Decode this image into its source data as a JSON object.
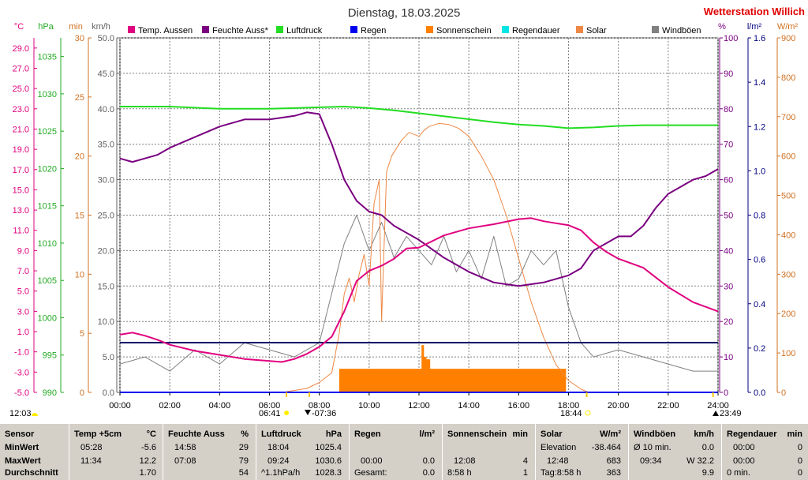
{
  "header": {
    "title": "Dienstag, 18.03.2025",
    "station": "Wetterstation Willich"
  },
  "axes": {
    "left_units": [
      "°C",
      "hPa",
      "min",
      "km/h"
    ],
    "right_units": [
      "%",
      "l/m²",
      "W/m²"
    ],
    "temp_ticks": [
      "29.0",
      "27.0",
      "25.0",
      "23.0",
      "21.0",
      "19.0",
      "17.0",
      "15.0",
      "13.0",
      "11.0",
      "9.0",
      "7.0",
      "5.0",
      "3.0",
      "1.0",
      "-1.0",
      "-3.0",
      "-5.0"
    ],
    "press_ticks": [
      "1035",
      "1030",
      "1025",
      "1020",
      "1015",
      "1010",
      "1005",
      "1000",
      "995",
      "990"
    ],
    "min_ticks": [
      "30",
      "25",
      "20",
      "15",
      "10",
      "5",
      "0"
    ],
    "wind_ticks": [
      "50.0",
      "45.0",
      "40.0",
      "35.0",
      "30.0",
      "25.0",
      "20.0",
      "15.0",
      "10.0",
      "5.0",
      "0.0"
    ],
    "hum_ticks": [
      "100",
      "90",
      "80",
      "70",
      "60",
      "50",
      "40",
      "30",
      "20",
      "10",
      "0"
    ],
    "rain_ticks": [
      "1.6",
      "1.4",
      "1.2",
      "1.0",
      "0.8",
      "0.6",
      "0.4",
      "0.2",
      "0.0"
    ],
    "solar_ticks": [
      "900",
      "800",
      "700",
      "600",
      "500",
      "400",
      "300",
      "200",
      "100",
      "0"
    ],
    "time_ticks": [
      "00:00",
      "02:00",
      "04:00",
      "06:00",
      "08:00",
      "10:00",
      "12:00",
      "14:00",
      "16:00",
      "18:00",
      "20:00",
      "22:00",
      "24:00"
    ],
    "sun_events": {
      "left_time": "12:03",
      "sunrise": "06:41",
      "dawn": "07:36",
      "sunset": "18:44",
      "right_time": "23:49"
    }
  },
  "legend": [
    {
      "label": "Temp. Aussen",
      "color": "#e0007f"
    },
    {
      "label": "Feuchte Auss*",
      "color": "#7a0080"
    },
    {
      "label": "Luftdruck",
      "color": "#22dd22"
    },
    {
      "label": "Regen",
      "color": "#0000ee"
    },
    {
      "label": "Sonnenschein",
      "color": "#ff8000"
    },
    {
      "label": "Regendauer",
      "color": "#00e5e5"
    },
    {
      "label": "Solar",
      "color": "#ee8844"
    },
    {
      "label": "Windböen",
      "color": "#808080"
    }
  ],
  "chart_data": {
    "type": "line",
    "x_range": [
      "00:00",
      "24:00"
    ],
    "grid": true,
    "legend_position": "top",
    "series": [
      {
        "name": "Temp. Aussen",
        "unit": "°C",
        "ylim": [
          -5,
          30
        ],
        "x": [
          0,
          0.5,
          1,
          1.5,
          2,
          3,
          4,
          5,
          6,
          6.5,
          7,
          7.5,
          8,
          8.5,
          9,
          9.5,
          10,
          10.5,
          11,
          11.5,
          12,
          13,
          14,
          15,
          16,
          16.5,
          17,
          17.5,
          18,
          18.5,
          19,
          19.5,
          20,
          21,
          22,
          23,
          24
        ],
        "values": [
          0.7,
          0.9,
          0.6,
          0.2,
          -0.3,
          -0.9,
          -1.3,
          -1.7,
          -1.9,
          -2.0,
          -1.7,
          -1.2,
          -0.5,
          0.5,
          3.0,
          6.0,
          7.0,
          7.5,
          8.2,
          9.2,
          9.3,
          10.5,
          11.2,
          11.6,
          12.1,
          12.2,
          11.9,
          11.7,
          11.5,
          11.0,
          9.8,
          8.9,
          8.2,
          7.3,
          5.4,
          3.9,
          3.0
        ]
      },
      {
        "name": "Feuchte Auss*",
        "unit": "%",
        "ylim": [
          0,
          100
        ],
        "x": [
          0,
          0.5,
          1,
          1.5,
          2,
          3,
          4,
          5,
          6,
          6.5,
          7,
          7.5,
          8,
          8.5,
          9,
          9.5,
          10,
          10.5,
          11,
          12,
          13,
          14,
          15,
          16,
          17,
          17.5,
          18,
          18.5,
          19,
          20,
          20.5,
          21,
          21.5,
          22,
          22.5,
          23,
          23.5,
          24
        ],
        "values": [
          66,
          65,
          66,
          67,
          69,
          72,
          75,
          77,
          77,
          77.5,
          78,
          79,
          78.5,
          70,
          60,
          54,
          51,
          50,
          47,
          43,
          38,
          34,
          31,
          30,
          31,
          32,
          33,
          35,
          40,
          44,
          44,
          47,
          52,
          56,
          58,
          60,
          61,
          63
        ]
      },
      {
        "name": "Luftdruck",
        "unit": "hPa",
        "ylim": [
          990,
          1037.5
        ],
        "x": [
          0,
          2,
          4,
          5,
          6,
          7,
          8,
          9,
          10,
          11,
          12,
          13,
          14,
          15,
          16,
          17,
          18,
          19,
          20,
          21,
          22,
          23,
          24
        ],
        "values": [
          1028.3,
          1028.3,
          1028.0,
          1028.0,
          1028.0,
          1028.1,
          1028.2,
          1028.3,
          1028.1,
          1027.8,
          1027.4,
          1027.0,
          1026.6,
          1026.2,
          1025.9,
          1025.7,
          1025.4,
          1025.5,
          1025.7,
          1025.8,
          1025.8,
          1025.8,
          1025.8
        ]
      },
      {
        "name": "Regen",
        "unit": "l/m²",
        "ylim": [
          0,
          1.6
        ],
        "x": [
          0,
          24
        ],
        "values": [
          0,
          0
        ]
      },
      {
        "name": "Sonnenschein",
        "unit": "min",
        "ylim": [
          0,
          30
        ],
        "x": [
          0,
          8.8,
          8.8,
          12.1,
          12.1,
          12.2,
          12.2,
          12.3,
          12.3,
          12.45,
          12.45,
          17.9,
          17.9,
          24
        ],
        "values": [
          0,
          0,
          2,
          2,
          4,
          4,
          3,
          3,
          2.8,
          2.8,
          2,
          2,
          0,
          0
        ]
      },
      {
        "name": "Regendauer",
        "unit": "min",
        "ylim": [
          0,
          30
        ],
        "x": [
          0,
          24
        ],
        "values": [
          0,
          0
        ]
      },
      {
        "name": "Solar",
        "unit": "W/m²",
        "ylim": [
          0,
          900
        ],
        "x": [
          6.7,
          7.5,
          8.0,
          8.5,
          8.8,
          9.0,
          9.2,
          9.4,
          9.6,
          9.8,
          10.0,
          10.2,
          10.4,
          10.5,
          10.7,
          10.9,
          11.1,
          11.3,
          11.6,
          12.0,
          12.2,
          12.4,
          12.8,
          13.2,
          13.6,
          14.0,
          14.5,
          15.0,
          15.5,
          16.0,
          16.5,
          17.0,
          17.5,
          18.0,
          18.5,
          18.8
        ],
        "values": [
          2,
          10,
          25,
          50,
          150,
          250,
          290,
          230,
          300,
          350,
          270,
          480,
          540,
          180,
          560,
          600,
          620,
          640,
          660,
          650,
          665,
          675,
          683,
          680,
          670,
          650,
          600,
          540,
          450,
          340,
          230,
          140,
          70,
          30,
          8,
          0
        ]
      },
      {
        "name": "Windböen",
        "unit": "km/h",
        "ylim": [
          0,
          50
        ],
        "x": [
          0,
          1,
          2,
          3,
          4,
          5,
          6,
          7,
          8,
          8.5,
          9,
          9.5,
          10,
          10.5,
          11,
          11.5,
          12,
          12.5,
          13,
          13.5,
          14,
          14.5,
          15,
          15.5,
          16,
          16.5,
          17,
          17.5,
          18,
          18.5,
          19,
          20,
          21,
          22,
          23,
          24
        ],
        "values": [
          4,
          5,
          3,
          6,
          4,
          7,
          6,
          5,
          7,
          14,
          21,
          25,
          20,
          24,
          19,
          22,
          20,
          18,
          22,
          17,
          20,
          16,
          22,
          15,
          16,
          20,
          18,
          20,
          12,
          7,
          5,
          6,
          5,
          4,
          3,
          3
        ]
      }
    ]
  },
  "summary": {
    "sensor": {
      "title": "Sensor",
      "rows": [
        "MinWert",
        "MaxWert",
        "Durchschnitt"
      ]
    },
    "temp": {
      "title": "Temp +5cm",
      "unit": "°C",
      "min_time": "05:28",
      "min_val": "-5.6",
      "max_time": "11:34",
      "max_val": "12.2",
      "avg_val": "1.70"
    },
    "humidity": {
      "title": "Feuchte Auss",
      "unit": "%",
      "min_time": "14:58",
      "min_val": "29",
      "max_time": "07:08",
      "max_val": "79",
      "avg_val": "54"
    },
    "pressure": {
      "title": "Luftdruck",
      "unit": "hPa",
      "min_time": "18:04",
      "min_val": "1025.4",
      "max_time": "09:24",
      "max_val": "1030.6",
      "avg_label": "^1.1hPa/h",
      "avg_val": "1028.3"
    },
    "rain": {
      "title": "Regen",
      "unit": "l/m²",
      "max_time": "00:00",
      "max_val": "0.0",
      "avg_label": "Gesamt:",
      "avg_val": "0.0"
    },
    "sunshine": {
      "title": "Sonnenschein",
      "unit": "min",
      "max_time": "12:08",
      "max_val": "4",
      "avg_label": "8:58 h",
      "avg_val": "1"
    },
    "solar": {
      "title": "Solar",
      "unit": "W/m²",
      "min_label": "Elevation",
      "min_val": "-38.464",
      "max_time": "12:48",
      "max_val": "683",
      "avg_label": "Tag:8:58 h",
      "avg_val": "363"
    },
    "wind": {
      "title": "Windböen",
      "unit": "km/h",
      "min_label": "Ø 10 min.",
      "min_val": "0.0",
      "max_time": "09:34",
      "max_val": "W 32.2",
      "avg_val": "9.9"
    },
    "rainduration": {
      "title": "Regendauer",
      "unit": "min",
      "min_time": "00:00",
      "min_val": "0",
      "max_time": "00:00",
      "max_val": "0",
      "avg_label": "0 min.",
      "avg_val": "0"
    }
  }
}
